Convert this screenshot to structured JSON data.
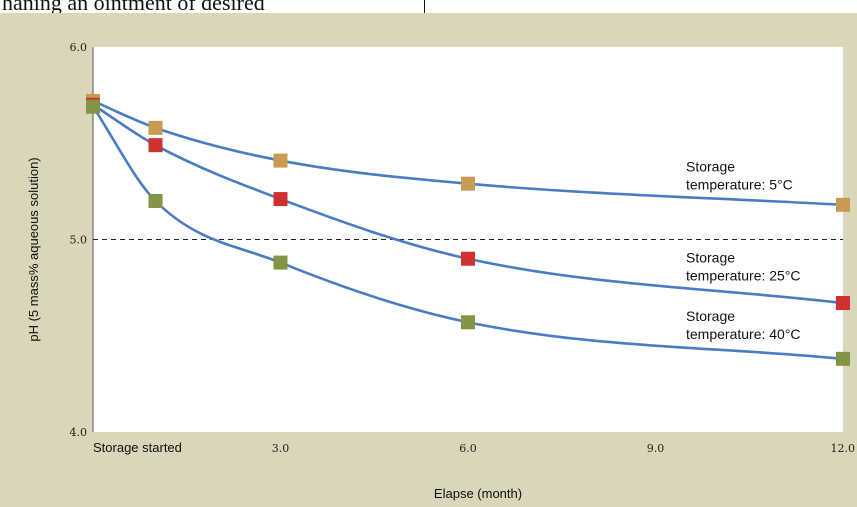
{
  "header": {
    "partial_text": "haning an ointment of desired"
  },
  "chart_data": {
    "type": "line",
    "xlabel": "Elapse (month)",
    "ylabel": "pH (5 mass% aqueous solution)",
    "xlim": [
      0,
      12
    ],
    "ylim": [
      4.0,
      6.0
    ],
    "x_ticks": [
      {
        "value": 0,
        "label": "Storage started"
      },
      {
        "value": 3,
        "label": "3.0"
      },
      {
        "value": 6,
        "label": "6.0"
      },
      {
        "value": 9,
        "label": "9.0"
      },
      {
        "value": 12,
        "label": "12.0"
      }
    ],
    "y_ticks": [
      {
        "value": 4.0,
        "label": "4.0"
      },
      {
        "value": 5.0,
        "label": "5.0"
      },
      {
        "value": 6.0,
        "label": "6.0"
      }
    ],
    "reference_line": {
      "y": 5.0,
      "style": "dashed"
    },
    "grid": false,
    "series": [
      {
        "name": "Storage temperature: 5°C",
        "label_lines": [
          "Storage",
          "temperature: 5°C"
        ],
        "marker_color": "#c99a52",
        "line_color": "#4a7cc4",
        "x": [
          0,
          1,
          3,
          6,
          12
        ],
        "y": [
          5.72,
          5.58,
          5.41,
          5.29,
          5.18
        ]
      },
      {
        "name": "Storage temperature: 25°C",
        "label_lines": [
          "Storage",
          "temperature: 25°C"
        ],
        "marker_color": "#cf3030",
        "line_color": "#4a7cc4",
        "x": [
          0,
          1,
          3,
          6,
          12
        ],
        "y": [
          5.7,
          5.49,
          5.21,
          4.9,
          4.67
        ]
      },
      {
        "name": "Storage temperature: 40°C",
        "label_lines": [
          "Storage",
          "temperature: 40°C"
        ],
        "marker_color": "#839445",
        "line_color": "#4a7cc4",
        "x": [
          0,
          1,
          3,
          6,
          12
        ],
        "y": [
          5.69,
          5.2,
          4.88,
          4.57,
          4.38
        ]
      }
    ]
  }
}
